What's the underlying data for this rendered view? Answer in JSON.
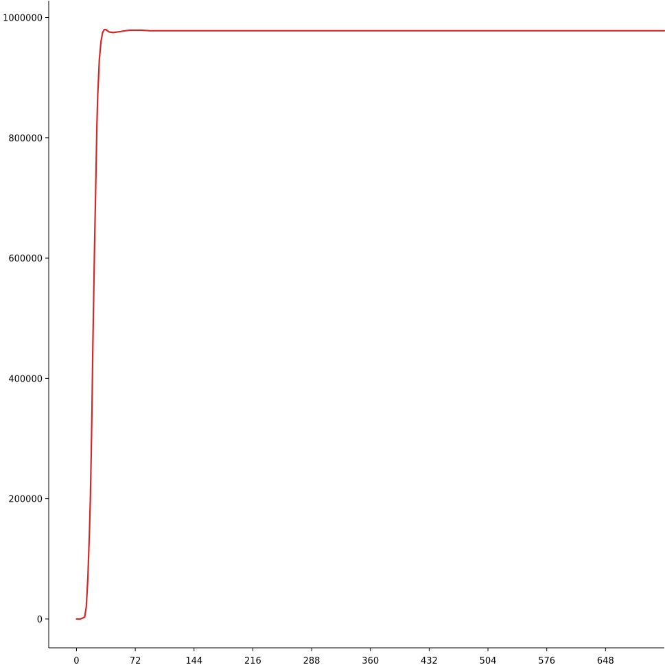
{
  "chart_data": {
    "type": "line",
    "title": "",
    "xlabel": "",
    "ylabel": "",
    "xlim": [
      -34,
      720
    ],
    "ylim": [
      -48000,
      1028000
    ],
    "x_ticks": [
      0,
      72,
      144,
      216,
      288,
      360,
      432,
      504,
      576,
      648
    ],
    "y_ticks": [
      0,
      200000,
      400000,
      600000,
      800000,
      1000000
    ],
    "x_tick_labels": [
      "0",
      "72",
      "144",
      "216",
      "288",
      "360",
      "432",
      "504",
      "576",
      "648"
    ],
    "y_tick_labels": [
      "0",
      "200000",
      "400000",
      "600000",
      "800000",
      "1000000"
    ],
    "grid": false,
    "spines": [
      "left",
      "bottom"
    ],
    "series": [
      {
        "color": "#d62728",
        "x": [
          0,
          5,
          10,
          12,
          14,
          16,
          17,
          18,
          19,
          20,
          21,
          22,
          23,
          24,
          25,
          26,
          27,
          28,
          30,
          32,
          34,
          36,
          38,
          40,
          45,
          50,
          55,
          60,
          65,
          70,
          80,
          90,
          100,
          120,
          150,
          200,
          300,
          400,
          500,
          600,
          720
        ],
        "y": [
          0,
          0,
          3000,
          20000,
          70000,
          150000,
          200000,
          270000,
          350000,
          450000,
          530000,
          610000,
          680000,
          750000,
          820000,
          870000,
          900000,
          930000,
          960000,
          975000,
          980000,
          980000,
          978000,
          976000,
          975000,
          976000,
          977000,
          978000,
          979000,
          979000,
          979000,
          978000,
          978000,
          978000,
          978000,
          978000,
          978000,
          978000,
          978000,
          978000,
          978000
        ]
      }
    ]
  }
}
